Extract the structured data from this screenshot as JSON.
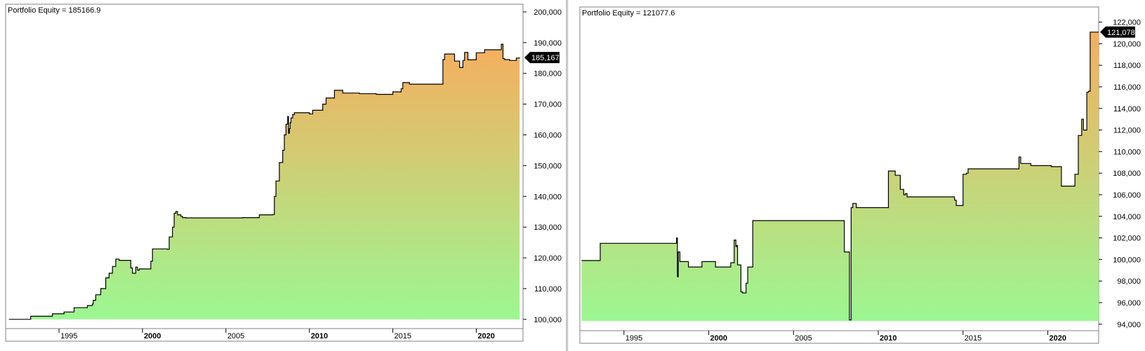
{
  "chart_data": [
    {
      "type": "area",
      "title": "Portfolio Equity = 185166.9",
      "x_ticks": [
        "1995",
        "2000",
        "2005",
        "2010",
        "2015",
        "2020"
      ],
      "bold_x_ticks": [
        "2000",
        "2010",
        "2020"
      ],
      "y_ticks": [
        "100,000",
        "110,000",
        "120,000",
        "130,000",
        "140,000",
        "150,000",
        "160,000",
        "170,000",
        "180,000",
        "190,000",
        "200,000"
      ],
      "y_tick_values": [
        100000,
        110000,
        120000,
        130000,
        140000,
        150000,
        160000,
        170000,
        180000,
        190000,
        200000
      ],
      "xlim": [
        1991.8,
        2022.8
      ],
      "ylim": [
        97000,
        202500
      ],
      "last_value_label": "185,167",
      "last_value": 185167,
      "fill_top_color": "#f6ae5e",
      "fill_bottom_color": "#9cf792",
      "line_color": "#000000",
      "series": [
        {
          "x": [
            1992.0,
            1993.2,
            1993.3,
            1994.5,
            1994.6,
            1995.2,
            1995.3,
            1995.8,
            1995.9,
            1996.6,
            1996.7,
            1996.9,
            1997.0,
            1997.05,
            1997.1,
            1997.2,
            1997.3,
            1997.5,
            1997.8,
            1998.0,
            1998.2,
            1998.4,
            1998.6,
            1999.0,
            1999.3,
            1999.4,
            1999.6,
            1999.7,
            1999.8,
            2000.0,
            2000.5,
            2000.6,
            2001.0,
            2001.5,
            2001.6,
            2001.8,
            2001.9,
            2002.0,
            2002.1,
            2002.3,
            2002.4,
            2002.6,
            2003.0,
            2004.0,
            2005.0,
            2006.0,
            2007.0,
            2007.8,
            2007.9,
            2008.0,
            2008.2,
            2008.4,
            2008.5,
            2008.6,
            2008.7,
            2008.75,
            2008.8,
            2008.85,
            2008.9,
            2009.0,
            2009.1,
            2010.0,
            2010.2,
            2010.8,
            2011.0,
            2011.5,
            2011.6,
            2012.0,
            2013.0,
            2014.0,
            2014.8,
            2015.0,
            2015.5,
            2015.6,
            2016.0,
            2017.0,
            2017.5,
            2018.0,
            2018.1,
            2018.6,
            2018.7,
            2019.0,
            2019.2,
            2019.3,
            2019.5,
            2020.0,
            2020.5,
            2021.0,
            2021.3,
            2021.5,
            2021.6,
            2021.7,
            2022.0,
            2022.4,
            2022.6
          ],
          "y": [
            100000,
            100000,
            101000,
            101000,
            101800,
            101800,
            102400,
            102400,
            103800,
            103800,
            104500,
            104500,
            105000,
            106200,
            106200,
            108000,
            108000,
            110000,
            113500,
            115000,
            117200,
            119600,
            119200,
            119200,
            116700,
            115000,
            117000,
            116000,
            116400,
            116400,
            118900,
            122900,
            122900,
            122800,
            126800,
            130000,
            134500,
            135100,
            134000,
            133500,
            133100,
            133000,
            133000,
            133000,
            133000,
            133100,
            134000,
            134100,
            140000,
            145000,
            151000,
            155000,
            160000,
            163500,
            166000,
            160500,
            162000,
            164000,
            165500,
            166600,
            167200,
            166800,
            168000,
            170000,
            172000,
            174500,
            174500,
            173600,
            173400,
            173200,
            173200,
            174000,
            175000,
            177000,
            176500,
            176500,
            176500,
            184500,
            186300,
            186300,
            184000,
            181900,
            184200,
            186800,
            184400,
            186700,
            187700,
            187700,
            187700,
            189500,
            184800,
            184500,
            184200,
            185000,
            185167
          ]
        }
      ]
    },
    {
      "type": "area",
      "title": "Portfolio Equity = 121077.6",
      "x_ticks": [
        "1995",
        "2000",
        "2005",
        "2010",
        "2015",
        "2020"
      ],
      "bold_x_ticks": [
        "2000",
        "2010",
        "2020"
      ],
      "y_ticks": [
        "94,000",
        "96,000",
        "98,000",
        "100,000",
        "102,000",
        "104,000",
        "106,000",
        "108,000",
        "110,000",
        "112,000",
        "114,000",
        "116,000",
        "118,000",
        "120,000",
        "122,000"
      ],
      "y_tick_values": [
        94000,
        96000,
        98000,
        100000,
        102000,
        104000,
        106000,
        108000,
        110000,
        112000,
        114000,
        116000,
        118000,
        120000,
        122000
      ],
      "xlim": [
        1992.4,
        2023.0
      ],
      "ylim": [
        93400,
        123400
      ],
      "last_value_label": "121,078",
      "last_value": 121078,
      "fill_top_color": "#f6ae5e",
      "fill_bottom_color": "#9cf792",
      "line_color": "#000000",
      "series": [
        {
          "x": [
            1992.5,
            1993.5,
            1993.6,
            1998.0,
            1998.1,
            1998.15,
            1998.2,
            1998.3,
            1998.7,
            1998.8,
            1999.5,
            1999.6,
            2000.3,
            2000.4,
            2001.2,
            2001.3,
            2001.5,
            2001.6,
            2001.65,
            2001.7,
            2001.9,
            2002.0,
            2002.2,
            2002.3,
            2002.6,
            2002.8,
            2003.0,
            2003.2,
            2004.0,
            2006.0,
            2007.5,
            2008.0,
            2008.2,
            2008.3,
            2008.4,
            2008.5,
            2008.6,
            2008.7,
            2009.0,
            2009.5,
            2010.5,
            2010.6,
            2011.0,
            2011.2,
            2011.3,
            2011.5,
            2011.6,
            2011.7,
            2012.0,
            2014.0,
            2014.5,
            2014.6,
            2015.0,
            2015.2,
            2015.3,
            2017.0,
            2018.0,
            2018.3,
            2018.4,
            2018.8,
            2019.0,
            2020.0,
            2020.2,
            2020.8,
            2021.0,
            2021.6,
            2021.7,
            2021.8,
            2022.0,
            2022.1,
            2022.3,
            2022.4,
            2022.5,
            2023.0
          ],
          "y": [
            99900,
            99900,
            101500,
            101500,
            102000,
            98400,
            100700,
            99800,
            99800,
            99300,
            99300,
            99800,
            99800,
            99300,
            99300,
            99700,
            101800,
            101200,
            101300,
            99500,
            97000,
            96900,
            97800,
            99300,
            103600,
            103600,
            103600,
            103600,
            103600,
            103600,
            103600,
            100700,
            100700,
            94400,
            104800,
            105200,
            105200,
            104800,
            104800,
            104800,
            104800,
            108200,
            107800,
            107800,
            106500,
            106000,
            106100,
            105800,
            105800,
            105800,
            105500,
            105000,
            107900,
            108000,
            108400,
            108400,
            108400,
            109500,
            108900,
            108900,
            108700,
            108700,
            108600,
            106800,
            106800,
            107900,
            107900,
            111500,
            113000,
            112000,
            115500,
            115600,
            121078,
            121078
          ]
        }
      ]
    }
  ]
}
